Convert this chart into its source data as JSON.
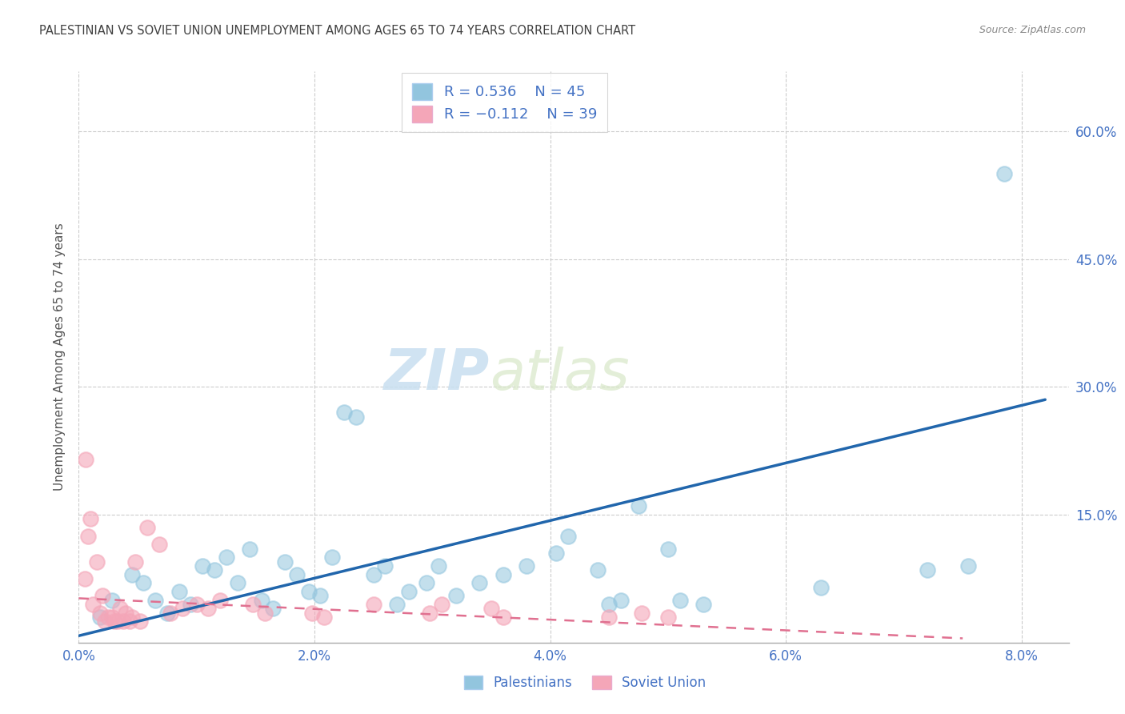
{
  "title": "PALESTINIAN VS SOVIET UNION UNEMPLOYMENT AMONG AGES 65 TO 74 YEARS CORRELATION CHART",
  "source": "Source: ZipAtlas.com",
  "xlabel_ticks": [
    "0.0%",
    "2.0%",
    "4.0%",
    "6.0%",
    "8.0%"
  ],
  "xlabel_vals": [
    0.0,
    2.0,
    4.0,
    6.0,
    8.0
  ],
  "ylabel_ticks": [
    "15.0%",
    "30.0%",
    "45.0%",
    "60.0%"
  ],
  "ylabel_vals": [
    15.0,
    30.0,
    45.0,
    60.0
  ],
  "xmin": 0.0,
  "xmax": 8.4,
  "ymin": 0.0,
  "ymax": 67.0,
  "watermark_zip": "ZIP",
  "watermark_atlas": "atlas",
  "legend_blue_r": "R = 0.536",
  "legend_blue_n": "N = 45",
  "legend_pink_r": "R = -0.112",
  "legend_pink_n": "N = 39",
  "legend_blue_label": "Palestinians",
  "legend_pink_label": "Soviet Union",
  "blue_marker_color": "#92c5de",
  "pink_marker_color": "#f4a6b8",
  "blue_line_color": "#2166ac",
  "pink_line_color": "#e07090",
  "grid_color": "#cccccc",
  "title_color": "#404040",
  "axis_label_color": "#4472c4",
  "ylabel_label": "Unemployment Among Ages 65 to 74 years",
  "blue_scatter_x": [
    0.18,
    0.28,
    0.45,
    0.55,
    0.65,
    0.75,
    0.85,
    0.95,
    1.05,
    1.15,
    1.25,
    1.35,
    1.45,
    1.55,
    1.65,
    1.75,
    1.85,
    1.95,
    2.05,
    2.15,
    2.25,
    2.35,
    2.5,
    2.6,
    2.7,
    2.8,
    2.95,
    3.05,
    3.2,
    3.4,
    3.6,
    3.8,
    4.05,
    4.15,
    4.4,
    4.5,
    4.6,
    4.75,
    5.0,
    5.1,
    5.3,
    6.3,
    7.2,
    7.55,
    7.85
  ],
  "blue_scatter_y": [
    3.0,
    5.0,
    8.0,
    7.0,
    5.0,
    3.5,
    6.0,
    4.5,
    9.0,
    8.5,
    10.0,
    7.0,
    11.0,
    5.0,
    4.0,
    9.5,
    8.0,
    6.0,
    5.5,
    10.0,
    27.0,
    26.5,
    8.0,
    9.0,
    4.5,
    6.0,
    7.0,
    9.0,
    5.5,
    7.0,
    8.0,
    9.0,
    10.5,
    12.5,
    8.5,
    4.5,
    5.0,
    16.0,
    11.0,
    5.0,
    4.5,
    6.5,
    8.5,
    9.0,
    55.0
  ],
  "pink_scatter_x": [
    0.05,
    0.08,
    0.1,
    0.12,
    0.15,
    0.18,
    0.2,
    0.22,
    0.25,
    0.28,
    0.3,
    0.33,
    0.35,
    0.38,
    0.4,
    0.43,
    0.45,
    0.48,
    0.52,
    0.58,
    0.68,
    0.78,
    0.88,
    1.0,
    1.1,
    1.2,
    1.48,
    1.58,
    1.98,
    2.08,
    2.5,
    2.98,
    3.08,
    3.5,
    3.6,
    4.5,
    4.78,
    5.0,
    0.06
  ],
  "pink_scatter_y": [
    7.5,
    12.5,
    14.5,
    4.5,
    9.5,
    3.5,
    5.5,
    2.5,
    3.0,
    3.0,
    2.5,
    2.5,
    4.0,
    2.5,
    3.5,
    2.5,
    3.0,
    9.5,
    2.5,
    13.5,
    11.5,
    3.5,
    4.0,
    4.5,
    4.0,
    5.0,
    4.5,
    3.5,
    3.5,
    3.0,
    4.5,
    3.5,
    4.5,
    4.0,
    3.0,
    3.0,
    3.5,
    3.0,
    21.5
  ],
  "blue_line_x": [
    0.0,
    8.2
  ],
  "blue_line_y": [
    0.8,
    28.5
  ],
  "pink_line_x": [
    0.0,
    7.5
  ],
  "pink_line_y": [
    5.2,
    0.5
  ]
}
